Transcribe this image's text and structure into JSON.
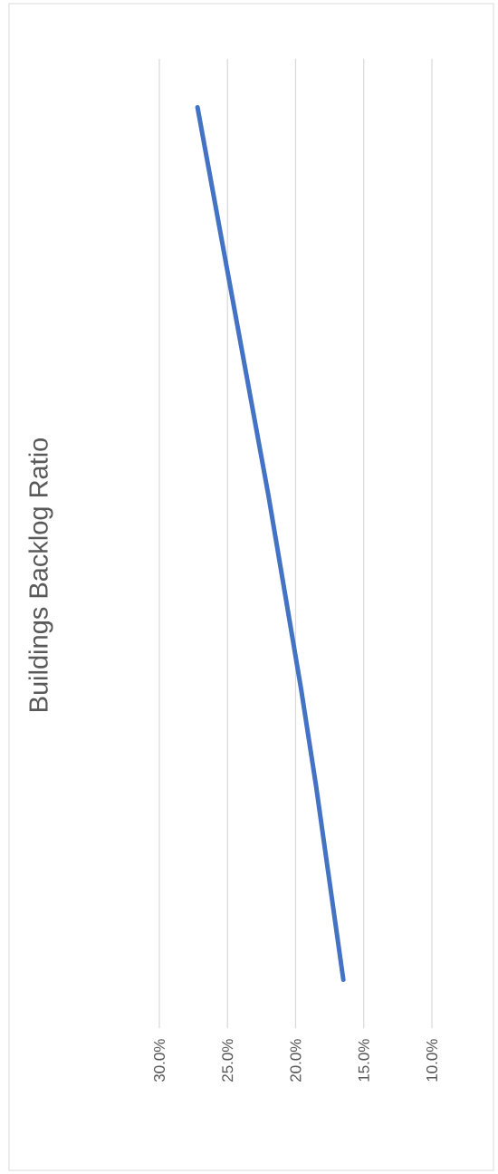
{
  "chart_data": {
    "type": "line",
    "title": "Buildings Backlog Ratio",
    "orientation": "horizontal",
    "categories": [
      null,
      null,
      null,
      null,
      null,
      null,
      null,
      null,
      null,
      null
    ],
    "values": [
      27.2,
      25.9,
      24.6,
      23.3,
      22.0,
      20.8,
      19.6,
      18.5,
      17.5,
      16.5
    ],
    "color": "#4472c4",
    "xlim": [
      30,
      10
    ],
    "xticks": [
      {
        "value": 30,
        "label": "30.0%"
      },
      {
        "value": 25,
        "label": "25.0%"
      },
      {
        "value": 20,
        "label": "20.0%"
      },
      {
        "value": 15,
        "label": "15.0%"
      },
      {
        "value": 10,
        "label": "10.0%"
      }
    ],
    "grid": "x",
    "tick_labels": "x"
  }
}
